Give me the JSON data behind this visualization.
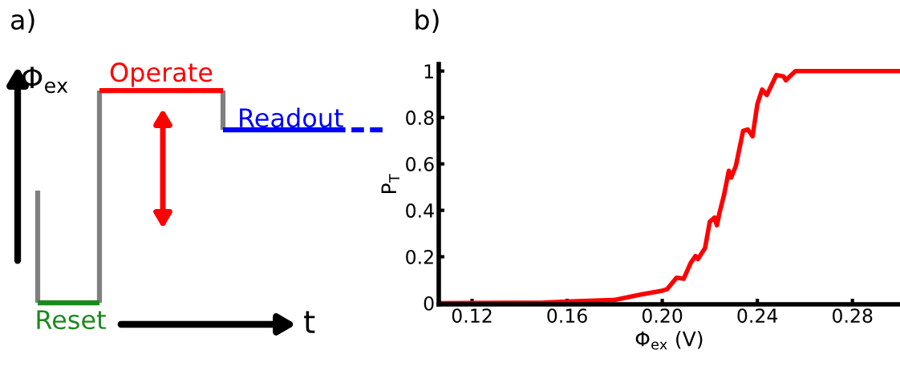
{
  "chart_data": [
    {
      "type": "other",
      "title": "a)",
      "xlabel": "t",
      "ylabel": "Φ$_{ex}$",
      "annotations": [
        "Operate",
        "Readout",
        "Reset"
      ]
    },
    {
      "type": "line",
      "title": "b)",
      "xlabel": "Φ$_{ex}$ (V)",
      "ylabel": "P$_{T}$",
      "marker": "none",
      "line_style": "solid",
      "grid": false,
      "legend": false,
      "xlim": [
        0.106,
        0.3
      ],
      "ylim": [
        -0.005,
        1.03
      ],
      "xticks": [
        0.12,
        0.16,
        {
          "value": 0.2,
          "label": "0.20"
        },
        0.24,
        0.28
      ],
      "yticks": [
        0,
        0.2,
        0.4,
        0.6,
        0.8,
        1
      ],
      "series": [
        {
          "color": "#ff0000",
          "x": [
            0.106,
            0.15,
            0.162,
            0.18,
            0.191,
            0.2,
            0.202,
            0.206,
            0.209,
            0.212,
            0.214,
            0.215,
            0.218,
            0.22,
            0.222,
            0.223,
            0.224,
            0.226,
            0.228,
            0.229,
            0.231,
            0.234,
            0.236,
            0.238,
            0.24,
            0.242,
            0.244,
            0.248,
            0.251,
            0.252,
            0.256,
            0.265,
            0.3
          ],
          "values": [
            0,
            0.003,
            0.008,
            0.014,
            0.037,
            0.054,
            0.06,
            0.11,
            0.105,
            0.174,
            0.203,
            0.19,
            0.237,
            0.351,
            0.369,
            0.335,
            0.386,
            0.467,
            0.57,
            0.541,
            0.593,
            0.742,
            0.748,
            0.719,
            0.857,
            0.92,
            0.897,
            0.983,
            0.977,
            0.96,
            1.0,
            1.0,
            1.0
          ]
        }
      ]
    }
  ]
}
